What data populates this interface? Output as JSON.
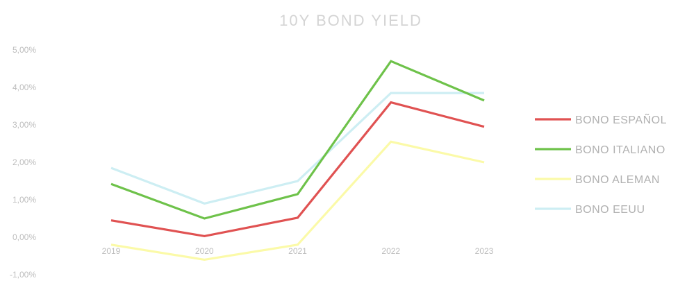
{
  "chart_data": {
    "type": "line",
    "title": "10Y BOND YIELD",
    "categories": [
      "2019",
      "2020",
      "2021",
      "2022",
      "2023"
    ],
    "ylim": [
      -1,
      5
    ],
    "yticks": [
      "-1,00%",
      "0,00%",
      "1,00%",
      "2,00%",
      "3,00%",
      "4,00%",
      "5,00%"
    ],
    "grid": false,
    "legend_position": "right",
    "series": [
      {
        "name": "BONO ESPAÑOL",
        "color": "#e05252",
        "values": [
          0.45,
          0.03,
          0.52,
          3.6,
          2.95
        ]
      },
      {
        "name": "BONO ITALIANO",
        "color": "#6ec24a",
        "values": [
          1.42,
          0.5,
          1.15,
          4.7,
          3.65
        ]
      },
      {
        "name": "BONO ALEMAN",
        "color": "#fbfaa8",
        "values": [
          -0.2,
          -0.6,
          -0.2,
          2.55,
          2.0
        ]
      },
      {
        "name": "BONO EEUU",
        "color": "#cdeef3",
        "values": [
          1.85,
          0.9,
          1.5,
          3.85,
          3.85
        ]
      }
    ]
  }
}
